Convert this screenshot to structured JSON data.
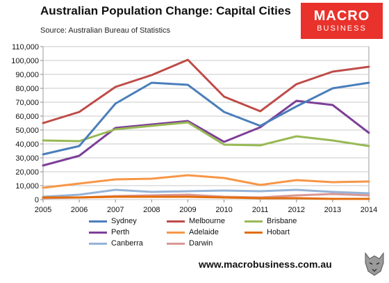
{
  "header": {
    "title": "Australian Population Change: Capital Cities",
    "subtitle": "Source: Australian Bureau of Statistics",
    "logo_line1": "MACRO",
    "logo_line2": "BUSINESS",
    "logo_color": "#e8322b"
  },
  "footer": {
    "url": "www.macrobusiness.com.au"
  },
  "chart_data": {
    "type": "line",
    "title": "Australian Population Change: Capital Cities",
    "xlabel": "",
    "ylabel": "",
    "x": [
      "2005",
      "2006",
      "2007",
      "2008",
      "2009",
      "2010",
      "2011",
      "2012",
      "2013",
      "2014"
    ],
    "ylim": [
      0,
      110000
    ],
    "yticks": [
      0,
      10000,
      20000,
      30000,
      40000,
      50000,
      60000,
      70000,
      80000,
      90000,
      100000,
      110000
    ],
    "ytick_labels": [
      "0",
      "10,000",
      "20,000",
      "30,000",
      "40,000",
      "50,000",
      "60,000",
      "70,000",
      "80,000",
      "90,000",
      "100,000",
      "110,000"
    ],
    "grid": true,
    "legend_position": "bottom",
    "series": [
      {
        "name": "Sydney",
        "color": "#4a7ebb",
        "values": [
          32500,
          38500,
          69000,
          84000,
          82500,
          63000,
          53000,
          67000,
          80000,
          84000
        ]
      },
      {
        "name": "Melbourne",
        "color": "#be4b48",
        "values": [
          55000,
          63000,
          81000,
          89500,
          100500,
          74000,
          63500,
          83000,
          92000,
          95500
        ]
      },
      {
        "name": "Brisbane",
        "color": "#98b954",
        "values": [
          42500,
          42000,
          50500,
          53000,
          55500,
          39500,
          39000,
          45500,
          42500,
          38500
        ]
      },
      {
        "name": "Perth",
        "color": "#7d3f98",
        "values": [
          24500,
          31500,
          51500,
          54000,
          56500,
          41500,
          52000,
          71000,
          68000,
          48000
        ]
      },
      {
        "name": "Adelaide",
        "color": "#f79646",
        "values": [
          8500,
          11500,
          14500,
          15000,
          17500,
          15500,
          10500,
          14000,
          12500,
          13000
        ]
      },
      {
        "name": "Hobart",
        "color": "#e46c0a",
        "values": [
          1500,
          1500,
          2000,
          2000,
          2000,
          1500,
          1000,
          1000,
          500,
          500
        ]
      },
      {
        "name": "Canberra",
        "color": "#95b3d7",
        "values": [
          2000,
          3500,
          7000,
          5500,
          6000,
          6500,
          6000,
          7000,
          5500,
          4500
        ]
      },
      {
        "name": "Darwin",
        "color": "#d99795",
        "values": [
          1000,
          1500,
          2500,
          3000,
          3500,
          2000,
          1500,
          3000,
          4000,
          3000
        ]
      }
    ]
  }
}
